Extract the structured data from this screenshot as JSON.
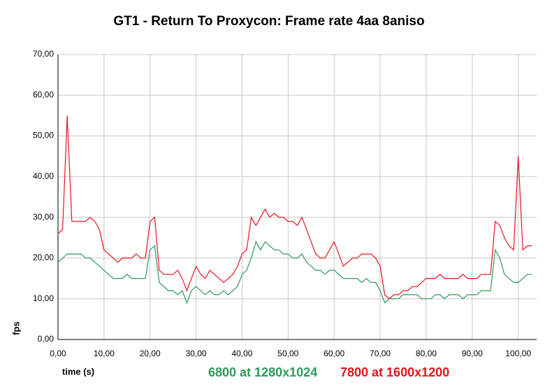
{
  "chart_data": {
    "type": "line",
    "title": "GT1 - Return To Proxycon: Frame rate 4aa 8aniso",
    "x_label": "time (s)",
    "y_label": "fps",
    "xlim": [
      0,
      104
    ],
    "ylim": [
      0,
      70
    ],
    "grid": true,
    "xticks": [
      {
        "value": 0,
        "label": "0,00"
      },
      {
        "value": 10,
        "label": "10,00"
      },
      {
        "value": 20,
        "label": "20,00"
      },
      {
        "value": 30,
        "label": "30,00"
      },
      {
        "value": 40,
        "label": "40,00"
      },
      {
        "value": 50,
        "label": "50,00"
      },
      {
        "value": 60,
        "label": "60,00"
      },
      {
        "value": 70,
        "label": "70,00"
      },
      {
        "value": 80,
        "label": "80,00"
      },
      {
        "value": 90,
        "label": "90,00"
      },
      {
        "value": 100,
        "label": "100,00"
      }
    ],
    "yticks": [
      {
        "value": 0,
        "label": "0,00"
      },
      {
        "value": 10,
        "label": "10,00"
      },
      {
        "value": 20,
        "label": "20,00"
      },
      {
        "value": 30,
        "label": "30,00"
      },
      {
        "value": 40,
        "label": "40,00"
      },
      {
        "value": 50,
        "label": "50,00"
      },
      {
        "value": 60,
        "label": "60,00"
      },
      {
        "value": 70,
        "label": "70,00"
      }
    ],
    "x": [
      0,
      1,
      2,
      3,
      4,
      5,
      6,
      7,
      8,
      9,
      10,
      11,
      12,
      13,
      14,
      15,
      16,
      17,
      18,
      19,
      20,
      21,
      22,
      23,
      24,
      25,
      26,
      27,
      28,
      29,
      30,
      31,
      32,
      33,
      34,
      35,
      36,
      37,
      38,
      39,
      40,
      41,
      42,
      43,
      44,
      45,
      46,
      47,
      48,
      49,
      50,
      51,
      52,
      53,
      54,
      55,
      56,
      57,
      58,
      59,
      60,
      61,
      62,
      63,
      64,
      65,
      66,
      67,
      68,
      69,
      70,
      71,
      72,
      73,
      74,
      75,
      76,
      77,
      78,
      79,
      80,
      81,
      82,
      83,
      84,
      85,
      86,
      87,
      88,
      89,
      90,
      91,
      92,
      93,
      94,
      95,
      96,
      97,
      98,
      99,
      100,
      101,
      102,
      103
    ],
    "series": [
      {
        "name": "6800 at 1280x1024",
        "color": "#2e9a5a",
        "values": [
          19,
          20,
          21,
          21,
          21,
          21,
          20,
          20,
          19,
          18,
          17,
          16,
          15,
          15,
          15,
          16,
          15,
          15,
          15,
          15,
          22,
          23,
          14,
          13,
          12,
          12,
          11,
          12,
          9,
          12,
          13,
          12,
          11,
          12,
          11,
          11,
          12,
          11,
          12,
          13,
          16,
          17,
          20,
          24,
          22,
          24,
          23,
          22,
          22,
          21,
          21,
          20,
          20,
          21,
          19,
          18,
          17,
          17,
          16,
          17,
          17,
          16,
          15,
          15,
          15,
          15,
          14,
          15,
          14,
          14,
          12,
          9,
          10,
          10,
          10,
          11,
          11,
          11,
          11,
          10,
          10,
          10,
          11,
          11,
          10,
          11,
          11,
          11,
          10,
          11,
          11,
          11,
          12,
          12,
          12,
          22,
          20,
          16,
          15,
          14,
          14,
          15,
          16,
          16
        ]
      },
      {
        "name": "7800 at 1600x1200",
        "color": "#e8141c",
        "values": [
          26,
          27,
          55,
          29,
          29,
          29,
          29,
          30,
          29,
          27,
          22,
          21,
          20,
          19,
          20,
          20,
          20,
          21,
          20,
          20,
          29,
          30,
          17,
          16,
          16,
          16,
          17,
          15,
          12,
          15,
          18,
          16,
          15,
          17,
          16,
          15,
          14,
          15,
          16,
          18,
          21,
          22,
          30,
          28,
          30,
          32,
          30,
          31,
          30,
          30,
          29,
          29,
          28,
          30,
          27,
          24,
          21,
          20,
          20,
          22,
          24,
          21,
          18,
          19,
          20,
          20,
          21,
          21,
          21,
          20,
          18,
          11,
          10,
          11,
          11,
          12,
          12,
          13,
          13,
          14,
          15,
          15,
          15,
          16,
          15,
          15,
          15,
          15,
          16,
          15,
          15,
          15,
          16,
          16,
          16,
          29,
          28,
          25,
          23,
          22,
          45,
          22,
          23,
          23
        ]
      }
    ]
  }
}
